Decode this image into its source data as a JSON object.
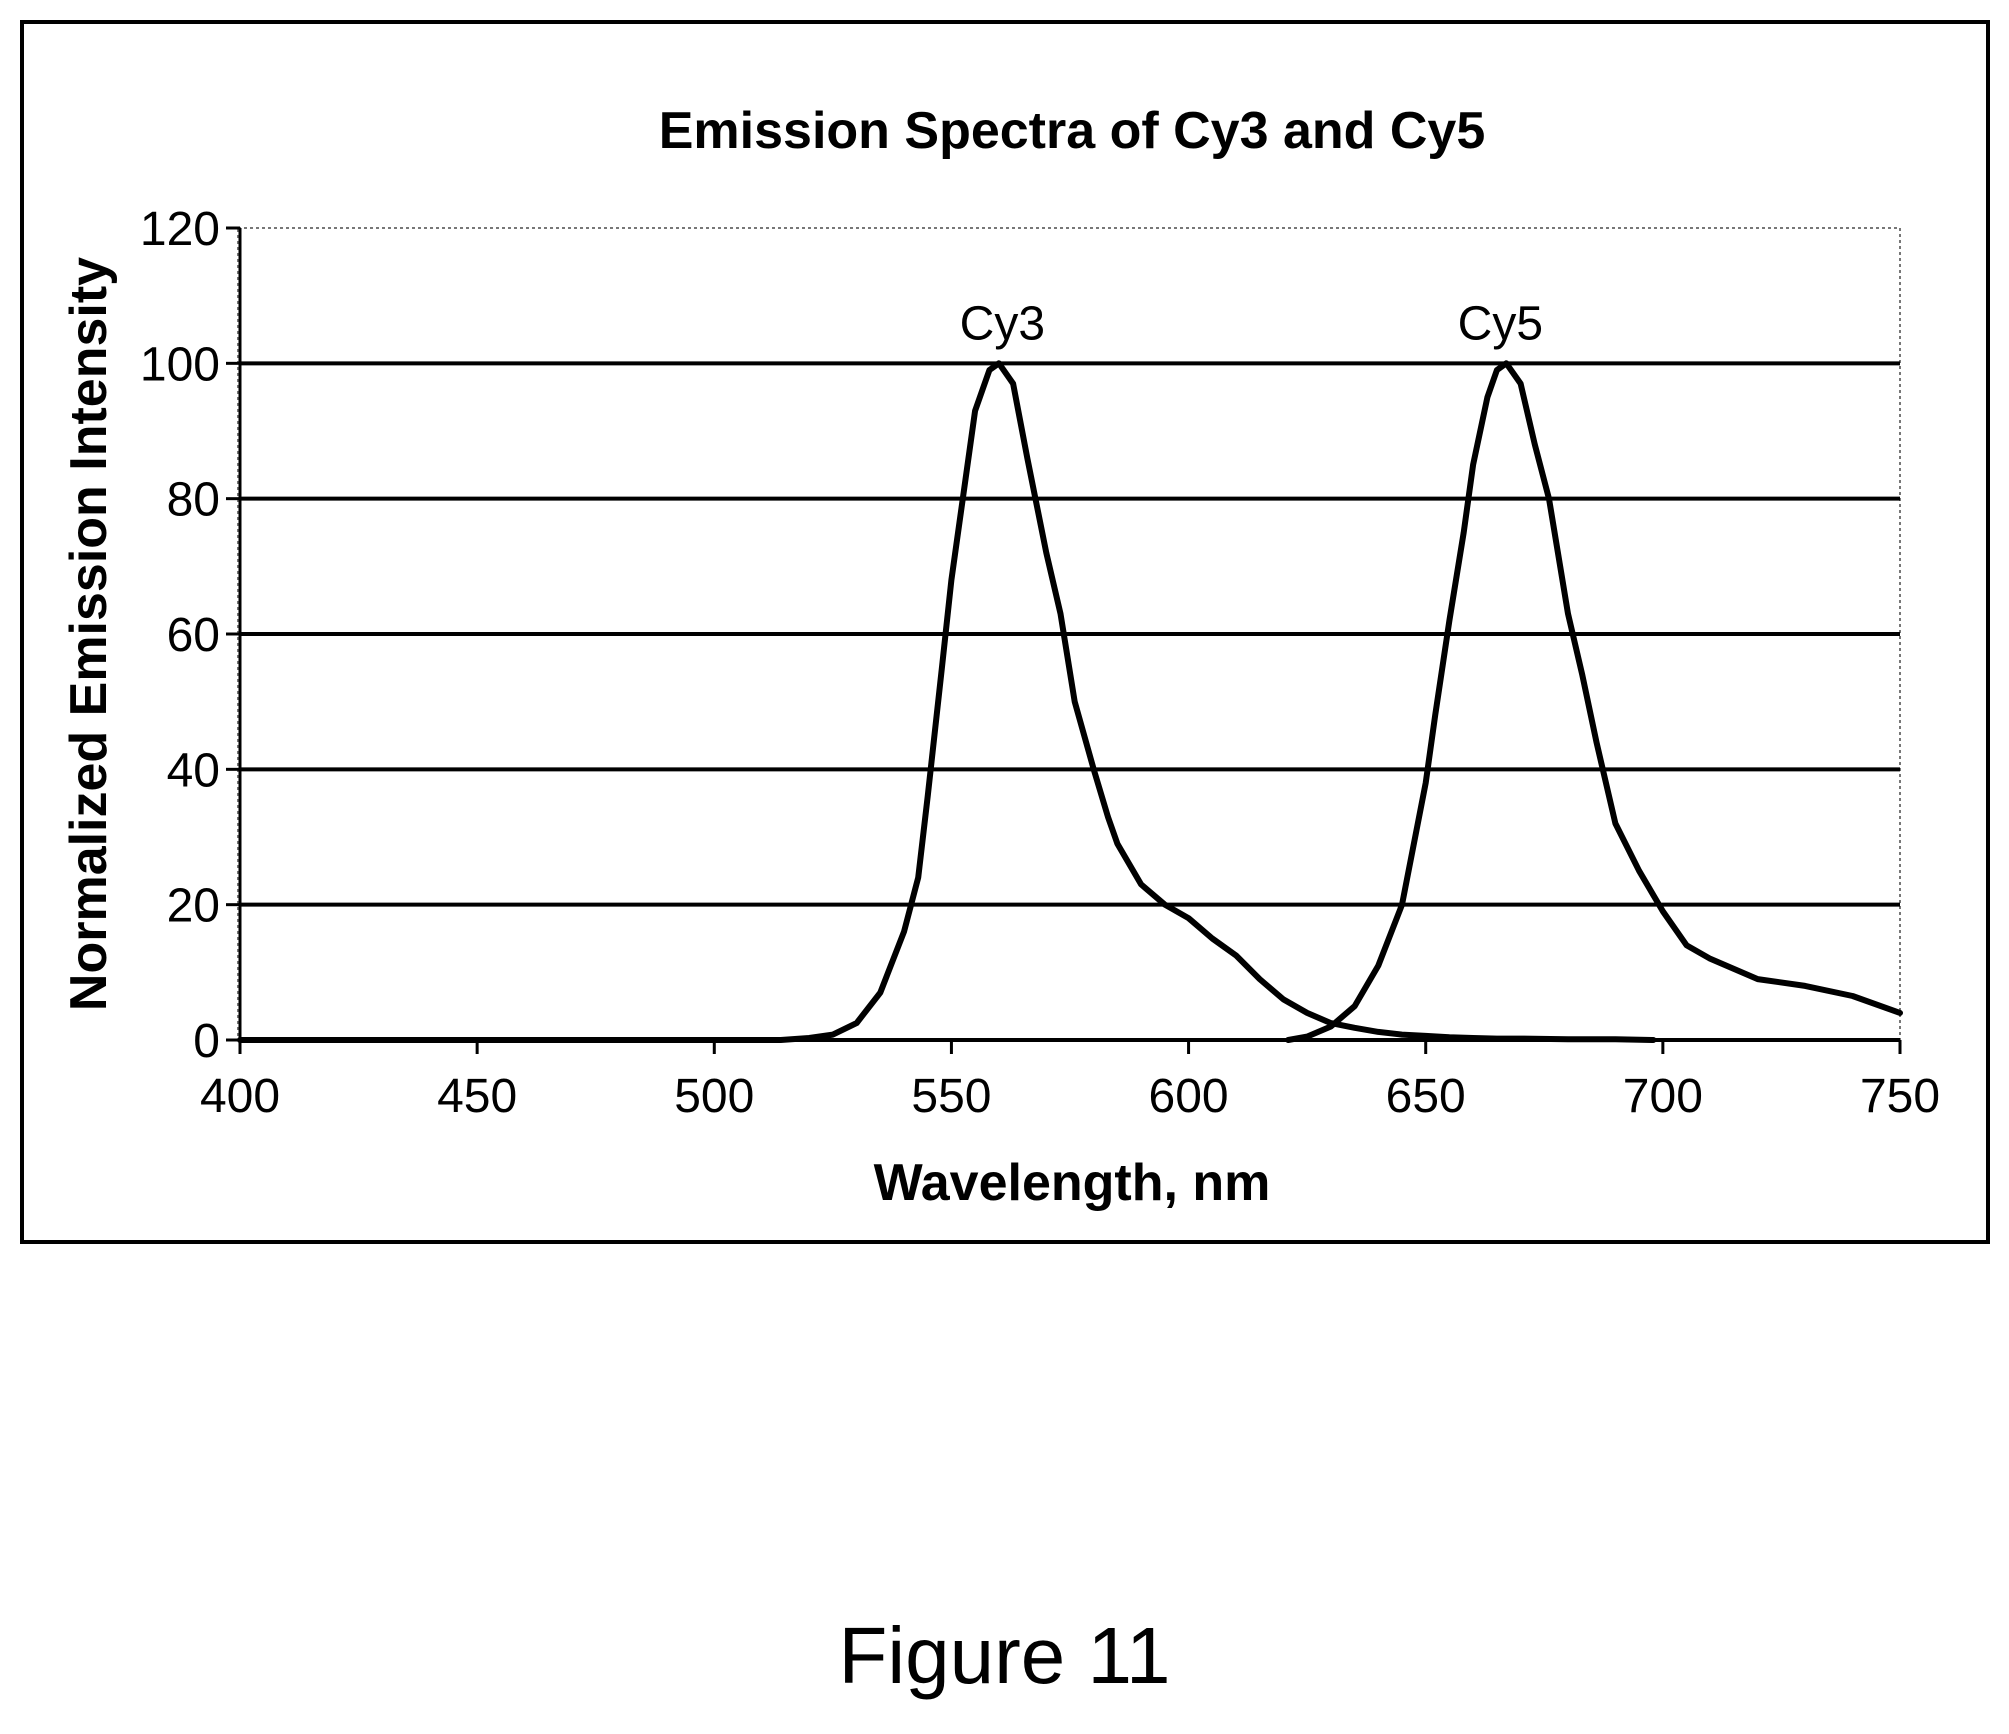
{
  "figure": {
    "caption": "Figure 11"
  },
  "chart_data": {
    "type": "line",
    "title": "Emission Spectra of Cy3 and Cy5",
    "xlabel": "Wavelength, nm",
    "ylabel": "Normalized Emission Intensity",
    "xlim": [
      400,
      750
    ],
    "ylim": [
      0,
      120
    ],
    "xticks": [
      400,
      450,
      500,
      550,
      600,
      650,
      700,
      750
    ],
    "yticks": [
      0,
      20,
      40,
      60,
      80,
      100,
      120
    ],
    "grid": "horizontal",
    "legend": "none",
    "line_color": "#000000",
    "series": [
      {
        "name": "Cy3",
        "x": [
          400,
          514,
          520,
          525,
          530,
          535,
          540,
          543,
          545,
          548,
          550,
          552,
          555,
          558,
          560,
          563,
          566,
          570,
          573,
          576,
          580,
          583,
          585,
          590,
          595,
          600,
          605,
          610,
          615,
          620,
          625,
          630,
          635,
          640,
          645,
          650,
          655,
          660,
          665,
          670,
          680,
          690,
          698
        ],
        "y": [
          0,
          0,
          0.3,
          0.8,
          2.5,
          7,
          16,
          24,
          36,
          55,
          68,
          78,
          93,
          99,
          100,
          97,
          86,
          72,
          63,
          50,
          40,
          33,
          29,
          23,
          20,
          18,
          15,
          12.5,
          9,
          6,
          4,
          2.5,
          1.8,
          1.2,
          0.8,
          0.6,
          0.4,
          0.3,
          0.2,
          0.2,
          0.1,
          0.1,
          0
        ]
      },
      {
        "name": "Cy5",
        "x": [
          621,
          625,
          630,
          635,
          640,
          645,
          650,
          652,
          655,
          658,
          660,
          663,
          665,
          667,
          670,
          673,
          676,
          680,
          683,
          686,
          690,
          695,
          700,
          705,
          710,
          720,
          730,
          740,
          750
        ],
        "y": [
          0,
          0.5,
          2,
          5,
          11,
          20,
          38,
          48,
          62,
          75,
          85,
          95,
          99,
          100,
          97,
          88,
          80,
          63,
          54,
          44,
          32,
          25,
          19,
          14,
          12,
          9,
          8,
          6.5,
          4
        ]
      }
    ],
    "annotations": [
      {
        "text": "Cy3",
        "x": 562,
        "y": 100
      },
      {
        "text": "Cy5",
        "x": 667,
        "y": 100
      }
    ]
  }
}
